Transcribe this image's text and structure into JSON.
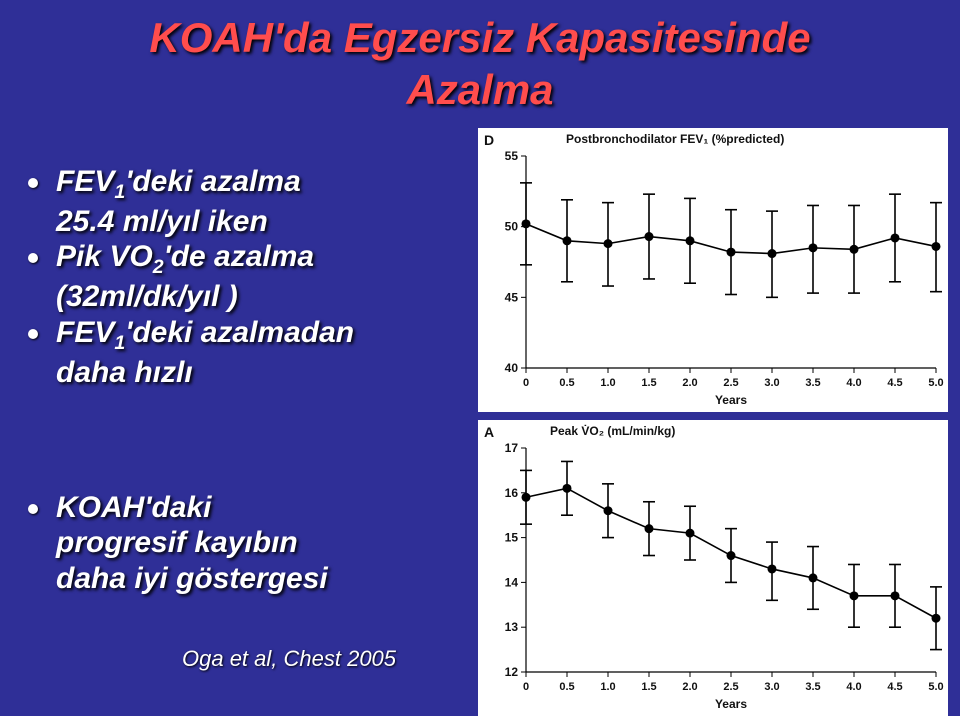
{
  "title_line1": "KOAH'da Egzersiz Kapasitesinde",
  "title_line2": "Azalma",
  "top_bullets": [
    "FEV₁'deki azalma 25.4 ml/yıl iken",
    "Pik VO₂'de azalma (32ml/dk/yıl )",
    "FEV₁'deki azalmadan daha hızlı"
  ],
  "bullets_top": {
    "b1a": "FEV",
    "b1sub": "1",
    "b1b": "'deki azalma",
    "b1c": "25.4 ml/yıl iken",
    "b2a": "Pik VO",
    "b2sub": "2",
    "b2b": "'de azalma",
    "b2c": "(32ml/dk/yıl )",
    "b3a": "FEV",
    "b3sub": "1",
    "b3b": "'deki azalmadan",
    "b3c": "daha hızlı"
  },
  "bullets_bot": {
    "l1": "KOAH'daki",
    "l2": "progresif kayıbın",
    "l3": "daha iyi göstergesi"
  },
  "cite": "Oga et al, Chest 2005",
  "chart_top": {
    "panel_letter": "D",
    "title": "Postbronchodilator FEV₁ (%predicted)",
    "x": {
      "min": 0,
      "max": 5,
      "ticks": [
        0,
        0.5,
        1,
        1.5,
        2,
        2.5,
        3,
        3.5,
        4,
        4.5,
        5
      ],
      "label": "Years"
    },
    "y": {
      "min": 40,
      "max": 55,
      "ticks": [
        40,
        45,
        50,
        55
      ]
    },
    "points": [
      {
        "x": 0,
        "y": 50.2,
        "lo": 47.3,
        "hi": 53.1
      },
      {
        "x": 0.5,
        "y": 49.0,
        "lo": 46.1,
        "hi": 51.9
      },
      {
        "x": 1,
        "y": 48.8,
        "lo": 45.8,
        "hi": 51.7
      },
      {
        "x": 1.5,
        "y": 49.3,
        "lo": 46.3,
        "hi": 52.3
      },
      {
        "x": 2,
        "y": 49.0,
        "lo": 46.0,
        "hi": 52.0
      },
      {
        "x": 2.5,
        "y": 48.2,
        "lo": 45.2,
        "hi": 51.2
      },
      {
        "x": 3,
        "y": 48.1,
        "lo": 45.0,
        "hi": 51.1
      },
      {
        "x": 3.5,
        "y": 48.5,
        "lo": 45.3,
        "hi": 51.5
      },
      {
        "x": 4,
        "y": 48.4,
        "lo": 45.3,
        "hi": 51.5
      },
      {
        "x": 4.5,
        "y": 49.2,
        "lo": 46.1,
        "hi": 52.3
      },
      {
        "x": 5,
        "y": 48.6,
        "lo": 45.4,
        "hi": 51.7
      }
    ],
    "colors": {
      "line": "#000",
      "marker_fill": "#000",
      "axis": "#000",
      "bg": "#fff"
    },
    "line_width": 1.6,
    "marker_r": 4.5
  },
  "chart_bot": {
    "panel_letter": "A",
    "title": "Peak V̇O₂ (mL/min/kg)",
    "x": {
      "min": 0,
      "max": 5,
      "ticks": [
        0,
        0.5,
        1,
        1.5,
        2,
        2.5,
        3,
        3.5,
        4,
        4.5,
        5
      ],
      "label": "Years"
    },
    "y": {
      "min": 12,
      "max": 17,
      "ticks": [
        12,
        13,
        14,
        15,
        16,
        17
      ]
    },
    "points": [
      {
        "x": 0,
        "y": 15.9,
        "lo": 15.3,
        "hi": 16.5
      },
      {
        "x": 0.5,
        "y": 16.1,
        "lo": 15.5,
        "hi": 16.7
      },
      {
        "x": 1,
        "y": 15.6,
        "lo": 15.0,
        "hi": 16.2
      },
      {
        "x": 1.5,
        "y": 15.2,
        "lo": 14.6,
        "hi": 15.8
      },
      {
        "x": 2,
        "y": 15.1,
        "lo": 14.5,
        "hi": 15.7
      },
      {
        "x": 2.5,
        "y": 14.6,
        "lo": 14.0,
        "hi": 15.2
      },
      {
        "x": 3,
        "y": 14.3,
        "lo": 13.6,
        "hi": 14.9
      },
      {
        "x": 3.5,
        "y": 14.1,
        "lo": 13.4,
        "hi": 14.8
      },
      {
        "x": 4,
        "y": 13.7,
        "lo": 13.0,
        "hi": 14.4
      },
      {
        "x": 4.5,
        "y": 13.7,
        "lo": 13.0,
        "hi": 14.4
      },
      {
        "x": 5,
        "y": 13.2,
        "lo": 12.5,
        "hi": 13.9
      }
    ],
    "colors": {
      "line": "#000",
      "marker_fill": "#000",
      "axis": "#000",
      "bg": "#fff"
    },
    "line_width": 1.6,
    "marker_r": 4.5
  },
  "figure_bg": "#ffffff"
}
